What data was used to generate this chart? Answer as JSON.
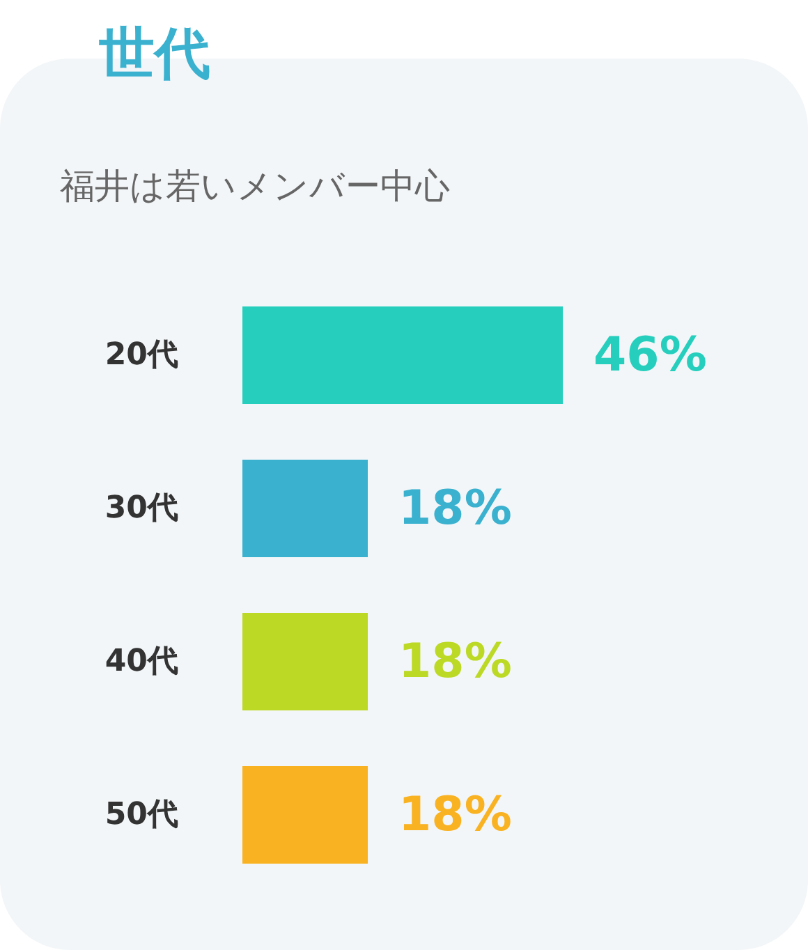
{
  "chart_data": {
    "type": "bar",
    "orientation": "horizontal",
    "title": "世代",
    "subtitle": "福井は若いメンバー中心",
    "categories": [
      "20代",
      "30代",
      "40代",
      "50代"
    ],
    "values": [
      46,
      18,
      18,
      18
    ],
    "colors": [
      "#26cfbd",
      "#3ab1cf",
      "#bcd925",
      "#f9b221"
    ],
    "value_labels": [
      "46%",
      "18%",
      "18%",
      "18%"
    ]
  }
}
